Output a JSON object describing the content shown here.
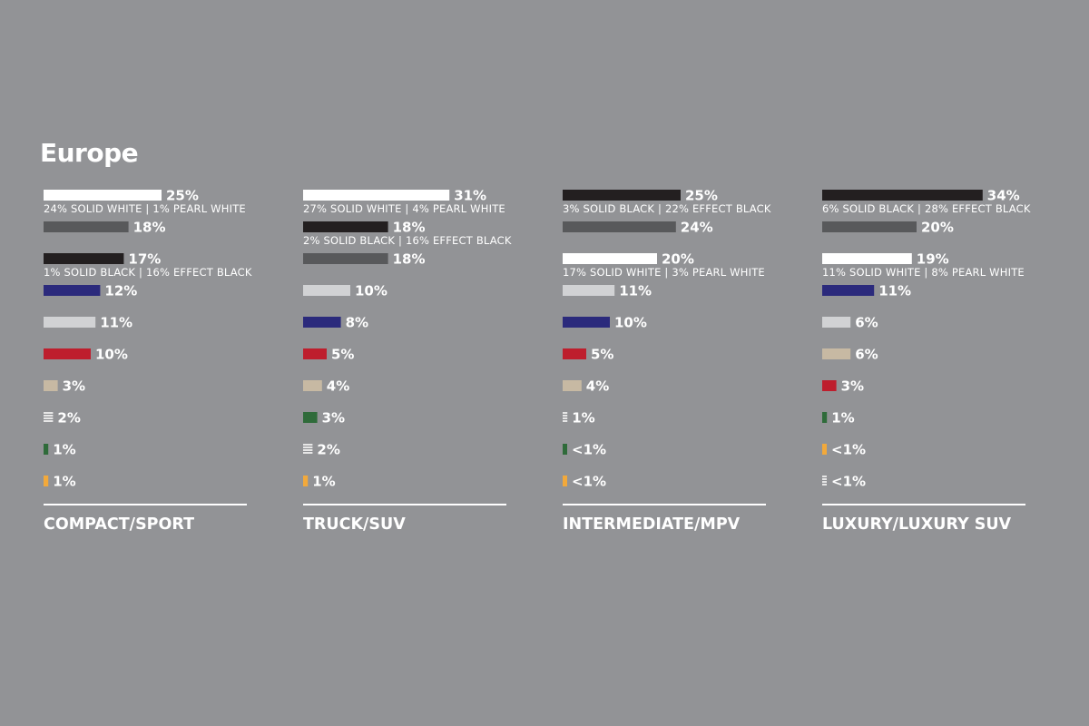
{
  "region": "Europe",
  "colors": {
    "white": "#ffffff",
    "black": "#231f20",
    "gray": "#58595b",
    "silver": "#d1d2d4",
    "blue": "#2b2a7c",
    "red": "#be1e2d",
    "beige": "#c7b9a3",
    "green": "#2f6b3a",
    "yellow": "#f2a93b",
    "other": "striped"
  },
  "chart_data": [
    {
      "type": "bar",
      "title": "COMPACT/SPORT",
      "bars": [
        {
          "color": "white",
          "value": 25,
          "label": "25%",
          "detail": "24% SOLID WHITE | 1% PEARL WHITE"
        },
        {
          "color": "gray",
          "value": 18,
          "label": "18%"
        },
        {
          "color": "black",
          "value": 17,
          "label": "17%",
          "detail": "1% SOLID BLACK | 16% EFFECT BLACK"
        },
        {
          "color": "blue",
          "value": 12,
          "label": "12%"
        },
        {
          "color": "silver",
          "value": 11,
          "label": "11%"
        },
        {
          "color": "red",
          "value": 10,
          "label": "10%"
        },
        {
          "color": "beige",
          "value": 3,
          "label": "3%"
        },
        {
          "color": "other",
          "value": 2,
          "label": "2%"
        },
        {
          "color": "green",
          "value": 1,
          "label": "1%"
        },
        {
          "color": "yellow",
          "value": 1,
          "label": "1%"
        }
      ]
    },
    {
      "type": "bar",
      "title": "TRUCK/SUV",
      "bars": [
        {
          "color": "white",
          "value": 31,
          "label": "31%",
          "detail": "27% SOLID WHITE | 4% PEARL WHITE"
        },
        {
          "color": "black",
          "value": 18,
          "label": "18%",
          "detail": "2% SOLID BLACK | 16% EFFECT BLACK"
        },
        {
          "color": "gray",
          "value": 18,
          "label": "18%"
        },
        {
          "color": "silver",
          "value": 10,
          "label": "10%"
        },
        {
          "color": "blue",
          "value": 8,
          "label": "8%"
        },
        {
          "color": "red",
          "value": 5,
          "label": "5%"
        },
        {
          "color": "beige",
          "value": 4,
          "label": "4%"
        },
        {
          "color": "green",
          "value": 3,
          "label": "3%"
        },
        {
          "color": "other",
          "value": 2,
          "label": "2%"
        },
        {
          "color": "yellow",
          "value": 1,
          "label": "1%"
        }
      ]
    },
    {
      "type": "bar",
      "title": "INTERMEDIATE/MPV",
      "bars": [
        {
          "color": "black",
          "value": 25,
          "label": "25%",
          "detail": "3% SOLID BLACK | 22% EFFECT BLACK"
        },
        {
          "color": "gray",
          "value": 24,
          "label": "24%"
        },
        {
          "color": "white",
          "value": 20,
          "label": "20%",
          "detail": "17% SOLID WHITE | 3% PEARL WHITE"
        },
        {
          "color": "silver",
          "value": 11,
          "label": "11%"
        },
        {
          "color": "blue",
          "value": 10,
          "label": "10%"
        },
        {
          "color": "red",
          "value": 5,
          "label": "5%"
        },
        {
          "color": "beige",
          "value": 4,
          "label": "4%"
        },
        {
          "color": "other",
          "value": 1,
          "label": "1%"
        },
        {
          "color": "green",
          "value": 0.5,
          "label": "<1%"
        },
        {
          "color": "yellow",
          "value": 0.5,
          "label": "<1%"
        }
      ]
    },
    {
      "type": "bar",
      "title": "LUXURY/LUXURY SUV",
      "bars": [
        {
          "color": "black",
          "value": 34,
          "label": "34%",
          "detail": "6% SOLID BLACK | 28% EFFECT BLACK"
        },
        {
          "color": "gray",
          "value": 20,
          "label": "20%"
        },
        {
          "color": "white",
          "value": 19,
          "label": "19%",
          "detail": "11% SOLID WHITE | 8% PEARL WHITE"
        },
        {
          "color": "blue",
          "value": 11,
          "label": "11%"
        },
        {
          "color": "silver",
          "value": 6,
          "label": "6%"
        },
        {
          "color": "beige",
          "value": 6,
          "label": "6%"
        },
        {
          "color": "red",
          "value": 3,
          "label": "3%"
        },
        {
          "color": "green",
          "value": 1,
          "label": "1%"
        },
        {
          "color": "yellow",
          "value": 0.5,
          "label": "<1%"
        },
        {
          "color": "other",
          "value": 0.5,
          "label": "<1%"
        }
      ]
    }
  ]
}
